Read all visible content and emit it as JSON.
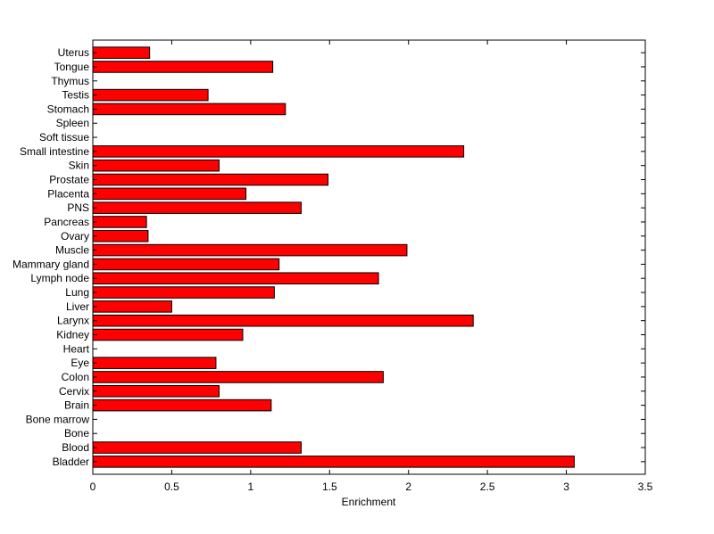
{
  "chart_data": {
    "type": "bar",
    "orientation": "horizontal",
    "xlabel": "Enrichment",
    "ylabel": "",
    "title": "",
    "xlim": [
      0,
      3.5
    ],
    "xticks": [
      "0",
      "0.5",
      "1",
      "1.5",
      "2",
      "2.5",
      "3",
      "3.5"
    ],
    "grid": false,
    "bar_color": "#ff0000",
    "categories": [
      "Bladder",
      "Blood",
      "Bone",
      "Bone marrow",
      "Brain",
      "Cervix",
      "Colon",
      "Eye",
      "Heart",
      "Kidney",
      "Larynx",
      "Liver",
      "Lung",
      "Lymph node",
      "Mammary gland",
      "Muscle",
      "Ovary",
      "Pancreas",
      "PNS",
      "Placenta",
      "Prostate",
      "Skin",
      "Small intestine",
      "Soft tissue",
      "Spleen",
      "Stomach",
      "Testis",
      "Thymus",
      "Tongue",
      "Uterus"
    ],
    "values": [
      3.05,
      1.32,
      0,
      0,
      1.13,
      0.8,
      1.84,
      0.78,
      0,
      0.95,
      2.41,
      0.5,
      1.15,
      1.81,
      1.18,
      1.99,
      0.35,
      0.34,
      1.32,
      0.97,
      1.49,
      0.8,
      2.35,
      0,
      0,
      1.22,
      0.73,
      0,
      1.14,
      0.36
    ]
  }
}
